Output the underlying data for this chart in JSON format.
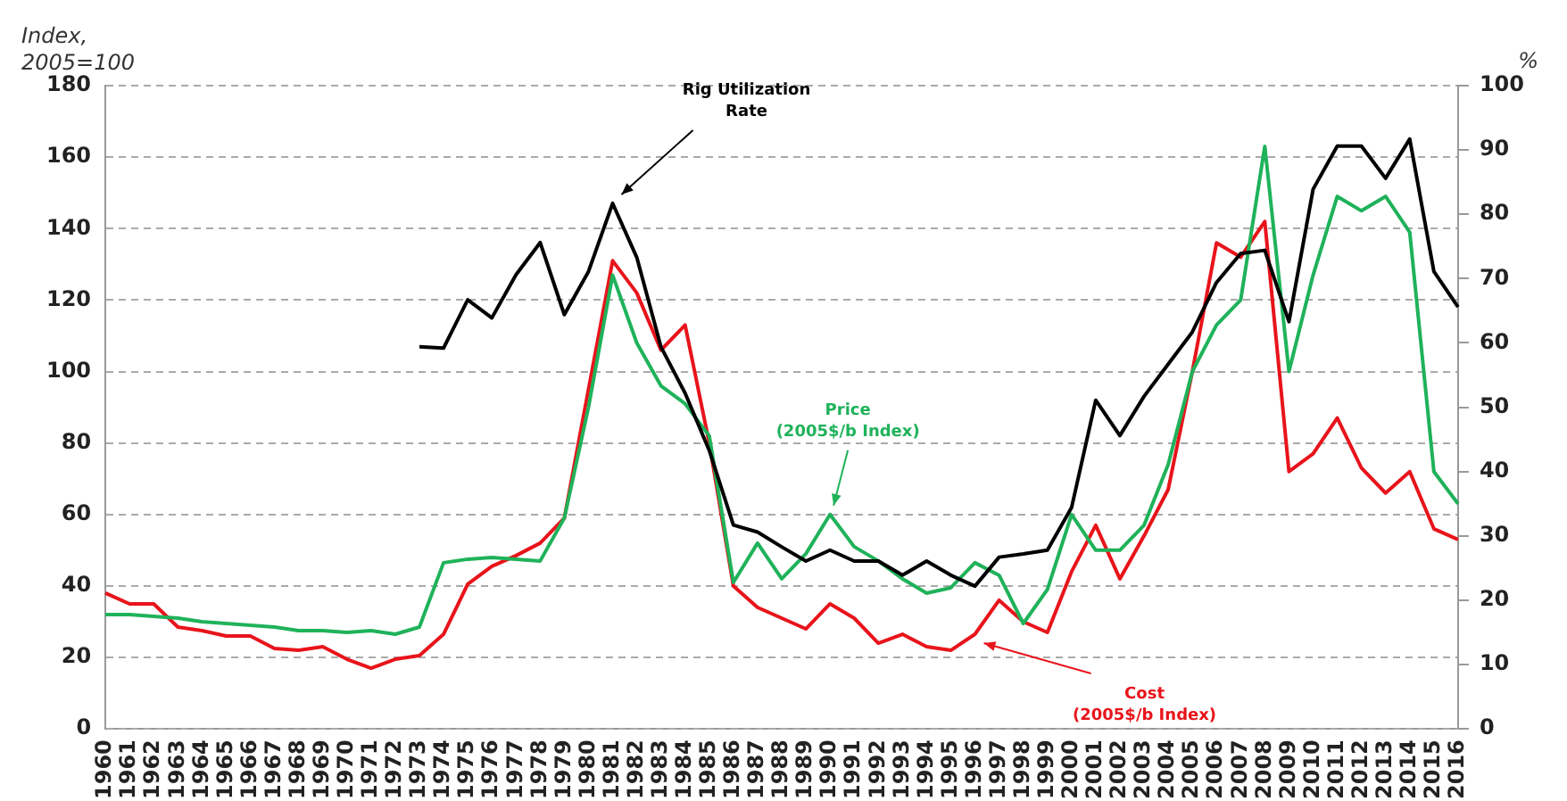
{
  "chart_data": {
    "type": "line",
    "ylabel": "Index, 2005=100",
    "y2label": "%",
    "categories": [
      "1960",
      "1961",
      "1962",
      "1963",
      "1964",
      "1965",
      "1966",
      "1967",
      "1968",
      "1969",
      "1970",
      "1971",
      "1972",
      "1973",
      "1974",
      "1975",
      "1976",
      "1977",
      "1978",
      "1979",
      "1980",
      "1981",
      "1982",
      "1983",
      "1984",
      "1985",
      "1986",
      "1987",
      "1988",
      "1989",
      "1990",
      "1991",
      "1992",
      "1993",
      "1994",
      "1995",
      "1996",
      "1997",
      "1998",
      "1999",
      "2000",
      "2001",
      "2002",
      "2003",
      "2004",
      "2005",
      "2006",
      "2007",
      "2008",
      "2009",
      "2010",
      "2011",
      "2012",
      "2013",
      "2014",
      "2015",
      "2016"
    ],
    "series": [
      {
        "name": "Rig Utilization Rate",
        "color": "#000000",
        "axis": "y2",
        "values": [
          null,
          null,
          null,
          null,
          null,
          null,
          null,
          null,
          null,
          null,
          null,
          null,
          null,
          59.4,
          59.2,
          66.7,
          63.9,
          70.6,
          75.6,
          64.4,
          71.1,
          81.7,
          73.3,
          59.4,
          52.2,
          43.3,
          31.7,
          30.6,
          28.3,
          26.1,
          27.8,
          26.1,
          26.1,
          23.9,
          26.1,
          23.9,
          22.2,
          26.7,
          27.2,
          27.8,
          34.4,
          51.1,
          45.6,
          51.7,
          56.7,
          61.7,
          69.4,
          73.9,
          74.4,
          63.3,
          83.9,
          90.6,
          90.6,
          85.6,
          91.7,
          71.1,
          65.6
        ]
      },
      {
        "name": "Price (2005$/b Index)",
        "color": "#1fb25a",
        "values": [
          32,
          32,
          31.5,
          31,
          30,
          29.5,
          29,
          28.5,
          27.5,
          27.5,
          27,
          27.5,
          26.5,
          28.5,
          46.5,
          47.5,
          48,
          47.5,
          47,
          59,
          90,
          127,
          108,
          96,
          91,
          82,
          41,
          52,
          42,
          49,
          60,
          51,
          47,
          42,
          38,
          39.5,
          46.5,
          43,
          29.5,
          39,
          60,
          50,
          50,
          57,
          74,
          100,
          113,
          120,
          163,
          100,
          127,
          149,
          145,
          149,
          139,
          72,
          63
        ]
      },
      {
        "name": "Cost (2005$/b Index)",
        "color": "#e8141b",
        "values": [
          38,
          35,
          35,
          28.5,
          27.5,
          26,
          26,
          22.5,
          22,
          23,
          19.5,
          17,
          19.5,
          20.5,
          26.5,
          40.5,
          45.5,
          48.5,
          52,
          59,
          95,
          131,
          122,
          106,
          113,
          80,
          40,
          34,
          31,
          28,
          35,
          31,
          24,
          26.5,
          23,
          22,
          26.5,
          36,
          30,
          27,
          44,
          57,
          42,
          54,
          67,
          100,
          136,
          132,
          142,
          72,
          77,
          87,
          73,
          66,
          72,
          56,
          53
        ]
      }
    ],
    "ylim": [
      0,
      180
    ],
    "yticks": [
      0,
      20,
      40,
      60,
      80,
      100,
      120,
      140,
      160,
      180
    ],
    "y2lim": [
      0,
      100
    ],
    "y2ticks": [
      0,
      10,
      20,
      30,
      40,
      50,
      60,
      70,
      80,
      90,
      100
    ],
    "grid": "y",
    "legend": false,
    "marker": "none",
    "line_style": "solid"
  }
}
